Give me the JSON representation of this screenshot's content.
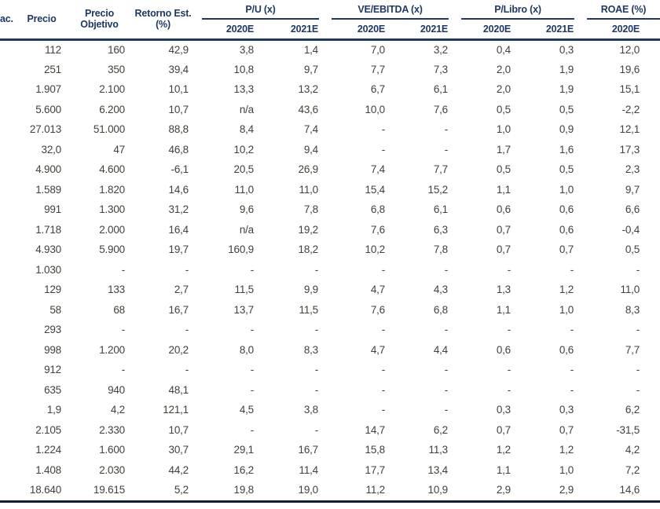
{
  "header": {
    "stub": "ac.",
    "precio": "Precio",
    "precio_objetivo": "Precio Objetivo",
    "retorno": "Retorno Est. (%)",
    "groups": [
      {
        "label": "P/U (x)",
        "subs": [
          "2020E",
          "2021E"
        ]
      },
      {
        "label": "VE/EBITDA (x)",
        "subs": [
          "2020E",
          "2021E"
        ]
      },
      {
        "label": "P/Libro (x)",
        "subs": [
          "2020E",
          "2021E"
        ]
      },
      {
        "label": "ROAE (%)",
        "subs": [
          "2020E"
        ]
      }
    ]
  },
  "rows": [
    [
      "112",
      "160",
      "42,9",
      "3,8",
      "1,4",
      "7,0",
      "3,2",
      "0,4",
      "0,3",
      "12,0"
    ],
    [
      "251",
      "350",
      "39,4",
      "10,8",
      "9,7",
      "7,7",
      "7,3",
      "2,0",
      "1,9",
      "19,6"
    ],
    [
      "1.907",
      "2.100",
      "10,1",
      "13,3",
      "13,2",
      "6,7",
      "6,1",
      "2,0",
      "1,9",
      "15,1"
    ],
    [
      "5.600",
      "6.200",
      "10,7",
      "n/a",
      "43,6",
      "10,0",
      "7,6",
      "0,5",
      "0,5",
      "-2,2"
    ],
    [
      "27.013",
      "51.000",
      "88,8",
      "8,4",
      "7,4",
      "-",
      "-",
      "1,0",
      "0,9",
      "12,1"
    ],
    [
      "32,0",
      "47",
      "46,8",
      "10,2",
      "9,4",
      "-",
      "-",
      "1,7",
      "1,6",
      "17,3"
    ],
    [
      "4.900",
      "4.600",
      "-6,1",
      "20,5",
      "26,9",
      "7,4",
      "7,7",
      "0,5",
      "0,5",
      "2,3"
    ],
    [
      "1.589",
      "1.820",
      "14,6",
      "11,0",
      "11,0",
      "15,4",
      "15,2",
      "1,1",
      "1,0",
      "9,7"
    ],
    [
      "991",
      "1.300",
      "31,2",
      "9,6",
      "7,8",
      "6,8",
      "6,1",
      "0,6",
      "0,6",
      "6,6"
    ],
    [
      "1.718",
      "2.000",
      "16,4",
      "n/a",
      "19,2",
      "7,6",
      "6,3",
      "0,7",
      "0,6",
      "-0,4"
    ],
    [
      "4.930",
      "5.900",
      "19,7",
      "160,9",
      "18,2",
      "10,2",
      "7,8",
      "0,7",
      "0,7",
      "0,5"
    ],
    [
      "1.030",
      "-",
      "-",
      "-",
      "-",
      "-",
      "-",
      "-",
      "-",
      "-"
    ],
    [
      "129",
      "133",
      "2,7",
      "11,5",
      "9,9",
      "4,7",
      "4,3",
      "1,3",
      "1,2",
      "11,0"
    ],
    [
      "58",
      "68",
      "16,7",
      "13,7",
      "11,5",
      "7,6",
      "6,8",
      "1,1",
      "1,0",
      "8,3"
    ],
    [
      "293",
      "-",
      "-",
      "-",
      "-",
      "-",
      "-",
      "-",
      "-",
      "-"
    ],
    [
      "998",
      "1.200",
      "20,2",
      "8,0",
      "8,3",
      "4,7",
      "4,4",
      "0,6",
      "0,6",
      "7,7"
    ],
    [
      "912",
      "-",
      "-",
      "-",
      "-",
      "-",
      "-",
      "-",
      "-",
      "-"
    ],
    [
      "635",
      "940",
      "48,1",
      "-",
      "-",
      "-",
      "-",
      "-",
      "-",
      "-"
    ],
    [
      "1,9",
      "4,2",
      "121,1",
      "4,5",
      "3,8",
      "-",
      "-",
      "0,3",
      "0,3",
      "6,2"
    ],
    [
      "2.105",
      "2.330",
      "10,7",
      "-",
      "-",
      "14,7",
      "6,2",
      "0,7",
      "0,7",
      "-31,5"
    ],
    [
      "1.224",
      "1.600",
      "30,7",
      "29,1",
      "16,7",
      "15,8",
      "11,3",
      "1,2",
      "1,2",
      "4,2"
    ],
    [
      "1.408",
      "2.030",
      "44,2",
      "16,2",
      "11,4",
      "17,7",
      "13,4",
      "1,1",
      "1,0",
      "7,2"
    ],
    [
      "18.640",
      "19.615",
      "5,2",
      "19,8",
      "19,0",
      "11,2",
      "10,9",
      "2,9",
      "2,9",
      "14,6"
    ]
  ],
  "colors": {
    "header_navy": "#1F3864",
    "body_text": "#45403A",
    "bottom_rule": "#111D30",
    "background": "#FFFFFF"
  }
}
